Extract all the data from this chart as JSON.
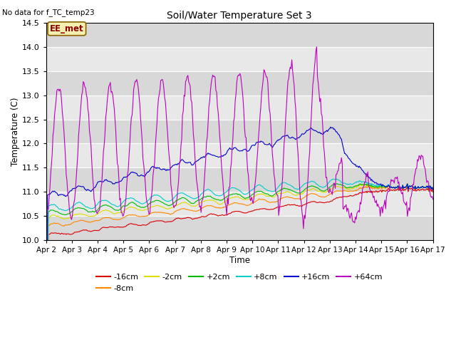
{
  "title": "Soil/Water Temperature Set 3",
  "subtitle": "No data for f_TC_temp23",
  "xlabel": "Time",
  "ylabel": "Temperature (C)",
  "annotation": "EE_met",
  "ylim": [
    10.0,
    14.5
  ],
  "xlim": [
    0,
    15
  ],
  "background_color": "#ffffff",
  "plot_bg_color": "#e0e0e0",
  "series": [
    {
      "label": "-16cm",
      "color": "#dd0000"
    },
    {
      "label": "-8cm",
      "color": "#ff8800"
    },
    {
      "label": "-2cm",
      "color": "#dddd00"
    },
    {
      "label": "+2cm",
      "color": "#00bb00"
    },
    {
      "label": "+8cm",
      "color": "#00cccc"
    },
    {
      "label": "+16cm",
      "color": "#0000cc"
    },
    {
      "label": "+64cm",
      "color": "#bb00bb"
    }
  ],
  "x_tick_labels": [
    "Apr 2",
    "Apr 3",
    "Apr 4",
    "Apr 5",
    "Apr 6",
    "Apr 7",
    "Apr 8",
    "Apr 9",
    "Apr 10",
    "Apr 11",
    "Apr 12",
    "Apr 13",
    "Apr 14",
    "Apr 15",
    "Apr 16",
    "Apr 17"
  ],
  "y_ticks": [
    10.0,
    10.5,
    11.0,
    11.5,
    12.0,
    12.5,
    13.0,
    13.5,
    14.0,
    14.5
  ],
  "grid_color": "#ffffff",
  "band_colors": [
    "#d8d8d8",
    "#e8e8e8"
  ],
  "linewidth": 0.8,
  "n_points": 500
}
